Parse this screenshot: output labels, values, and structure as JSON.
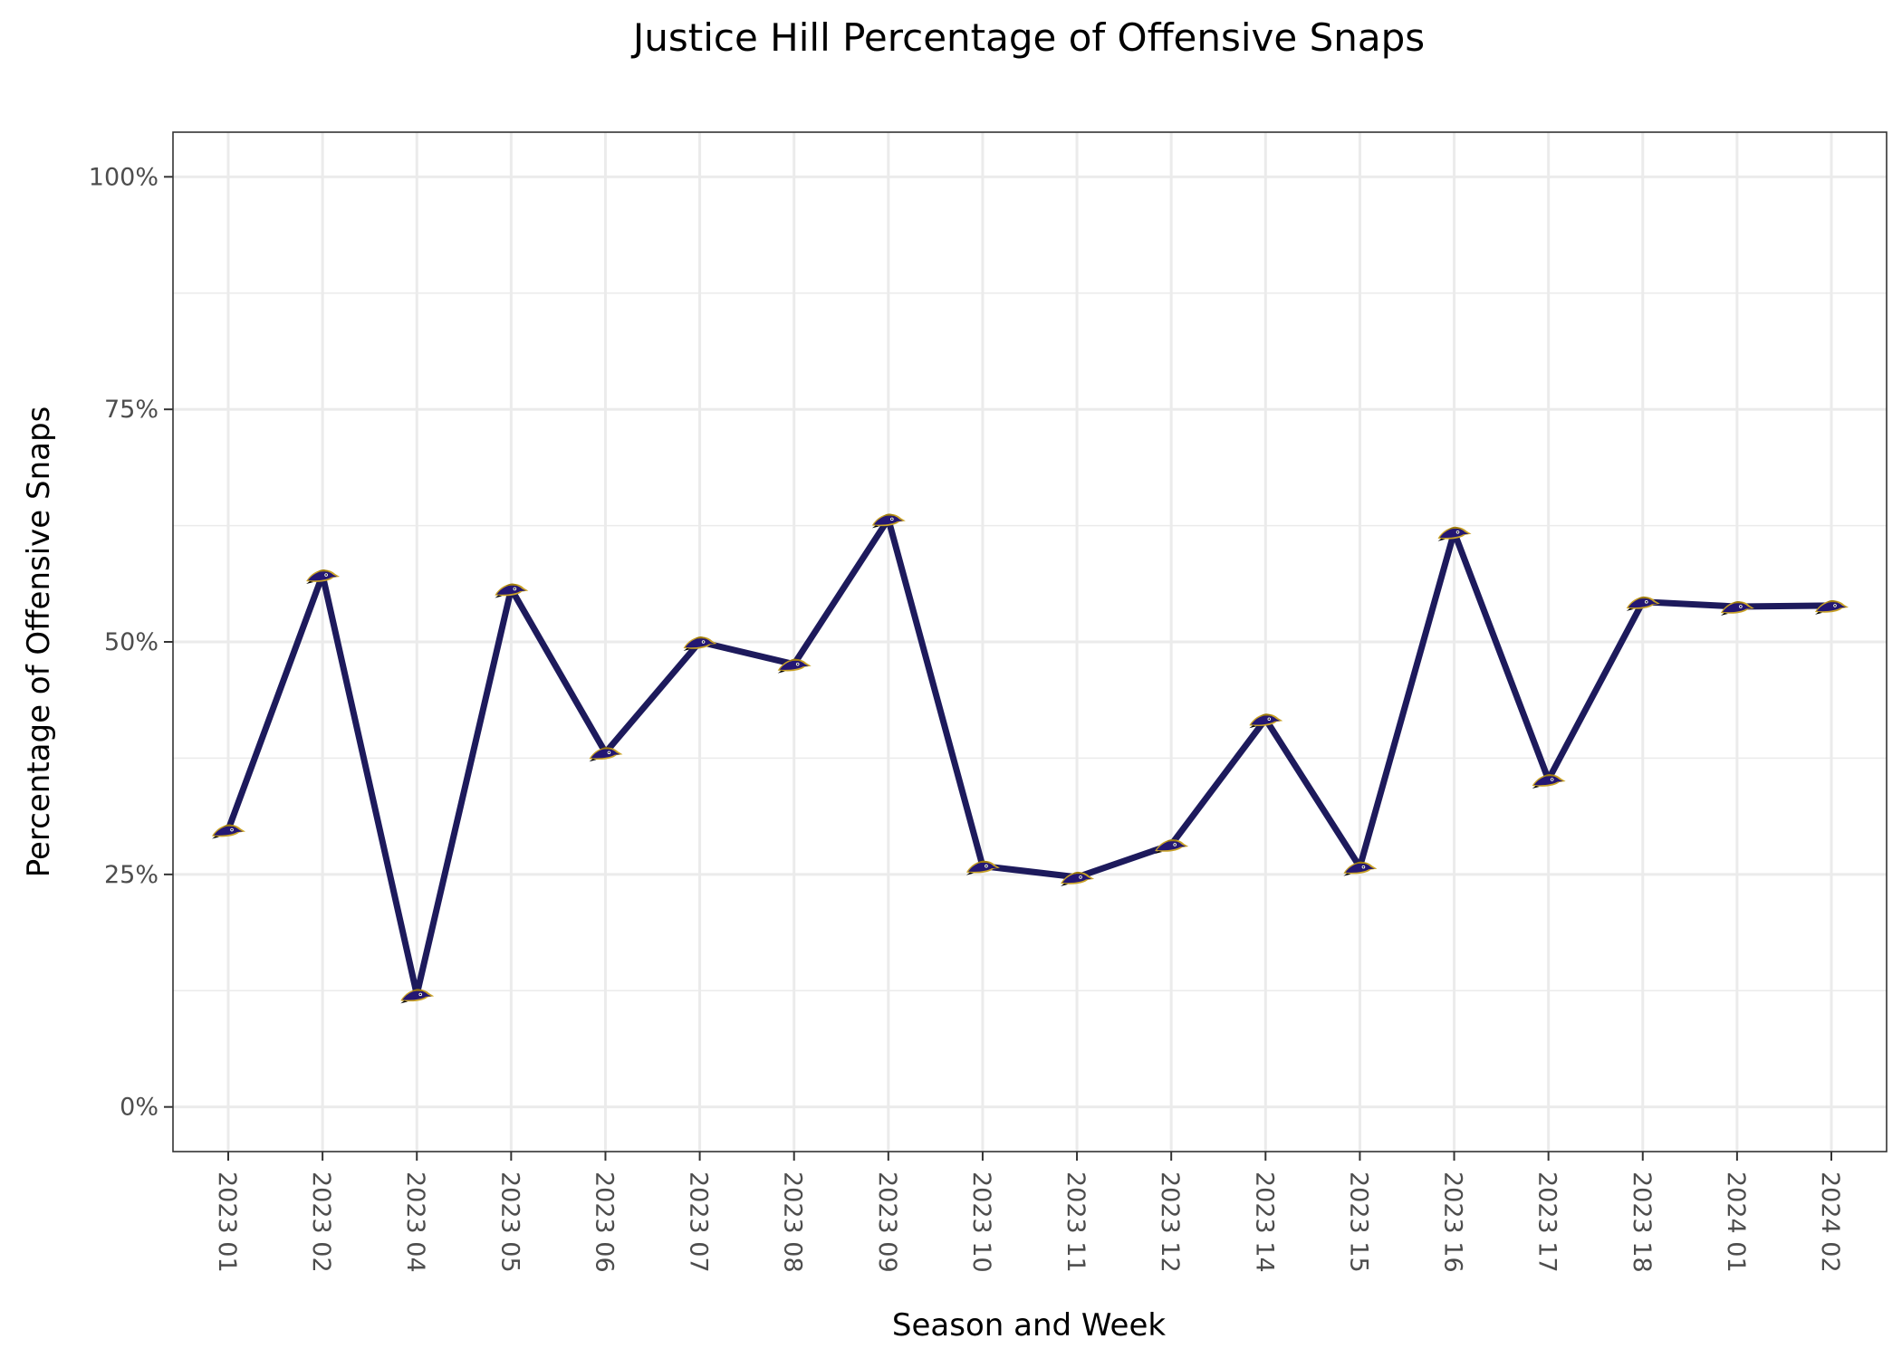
{
  "chart_data": {
    "type": "line",
    "title": "Justice Hill Percentage of Offensive Snaps",
    "xlabel": "Season and Week",
    "ylabel": "Percentage of Offensive Snaps",
    "categories": [
      "2023 01",
      "2023 02",
      "2023 04",
      "2023 05",
      "2023 06",
      "2023 07",
      "2023 08",
      "2023 09",
      "2023 10",
      "2023 11",
      "2023 12",
      "2023 14",
      "2023 15",
      "2023 16",
      "2023 17",
      "2023 18",
      "2024 01",
      "2024 02"
    ],
    "values": [
      29.8,
      57.2,
      12.1,
      55.7,
      38.1,
      50.0,
      47.6,
      63.2,
      25.9,
      24.7,
      28.2,
      41.7,
      25.8,
      61.8,
      35.2,
      54.3,
      53.8,
      53.9
    ],
    "y_ticks": [
      "0%",
      "25%",
      "50%",
      "75%",
      "100%"
    ],
    "y_tick_values": [
      0,
      25,
      50,
      75,
      100
    ],
    "ylim": [
      -4.8,
      104.8
    ],
    "grid": true,
    "legend": "none",
    "line_color": "#1d1a5c",
    "marker_icon": "ravens-logo-icon"
  }
}
